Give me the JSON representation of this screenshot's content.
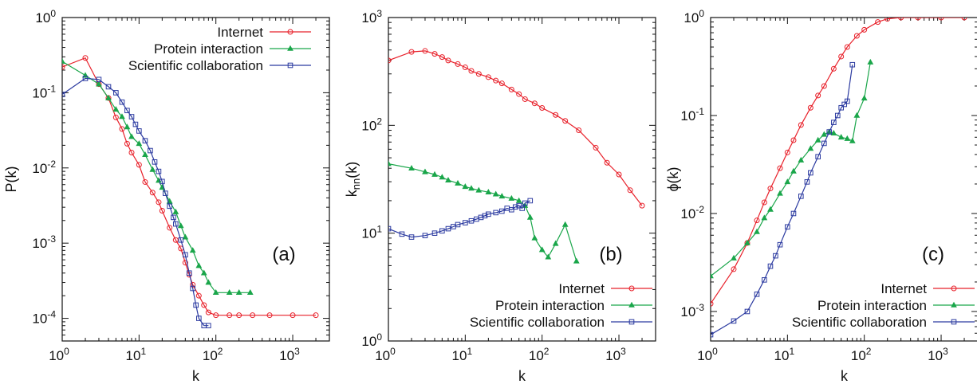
{
  "chart_data": [
    {
      "type": "line",
      "panel_label": "(a)",
      "xlabel": "k",
      "ylabel": "P(k)",
      "xscale": "log",
      "yscale": "log",
      "xlim": [
        1,
        3000
      ],
      "ylim": [
        5e-05,
        1
      ],
      "x_ticks": [
        {
          "v": 1,
          "e": "0"
        },
        {
          "v": 10,
          "e": "1"
        },
        {
          "v": 100,
          "e": "2"
        },
        {
          "v": 1000,
          "e": "3"
        }
      ],
      "y_ticks": [
        {
          "v": 0.0001,
          "e": "-4"
        },
        {
          "v": 0.001,
          "e": "-3"
        },
        {
          "v": 0.01,
          "e": "-2"
        },
        {
          "v": 0.1,
          "e": "-1"
        },
        {
          "v": 1,
          "e": "0"
        }
      ],
      "legend_position": "top-right",
      "series": [
        {
          "name": "Internet",
          "color": "#e8202a",
          "marker": "circle",
          "x": [
            1,
            2,
            3,
            4,
            5,
            6,
            7,
            8,
            10,
            12,
            15,
            18,
            20,
            25,
            30,
            35,
            40,
            45,
            50,
            60,
            70,
            80,
            100,
            150,
            200,
            300,
            500,
            1000,
            2000
          ],
          "y": [
            0.22,
            0.29,
            0.13,
            0.085,
            0.047,
            0.033,
            0.021,
            0.016,
            0.011,
            0.0065,
            0.0047,
            0.0035,
            0.0027,
            0.0016,
            0.0011,
            0.00085,
            0.00055,
            0.00038,
            0.00028,
            0.0002,
            0.00015,
            0.00012,
            0.00011,
            0.00011,
            0.00011,
            0.00011,
            0.00011,
            0.00011,
            0.00011
          ]
        },
        {
          "name": "Protein interaction",
          "color": "#1aa64a",
          "marker": "triangle",
          "x": [
            1,
            2,
            3,
            4,
            5,
            6,
            7,
            8,
            10,
            12,
            15,
            18,
            20,
            25,
            30,
            35,
            40,
            50,
            60,
            70,
            80,
            100,
            150,
            200,
            280
          ],
          "y": [
            0.26,
            0.17,
            0.13,
            0.085,
            0.06,
            0.048,
            0.035,
            0.026,
            0.021,
            0.015,
            0.0095,
            0.0068,
            0.0055,
            0.0036,
            0.0026,
            0.0017,
            0.0012,
            0.0008,
            0.0005,
            0.0004,
            0.0003,
            0.00022,
            0.00022,
            0.00022,
            0.00022
          ]
        },
        {
          "name": "Scientific collaboration",
          "color": "#2b3aa0",
          "marker": "square",
          "x": [
            1,
            2,
            3,
            4,
            5,
            6,
            7,
            8,
            9,
            10,
            12,
            14,
            16,
            18,
            20,
            22,
            25,
            28,
            30,
            35,
            40,
            45,
            50,
            55,
            60,
            70,
            80
          ],
          "y": [
            0.095,
            0.155,
            0.15,
            0.12,
            0.1,
            0.075,
            0.058,
            0.048,
            0.038,
            0.031,
            0.023,
            0.017,
            0.012,
            0.009,
            0.0066,
            0.0046,
            0.0031,
            0.0022,
            0.0018,
            0.0011,
            0.0007,
            0.0004,
            0.00025,
            0.00015,
            0.0001,
            8e-05,
            8e-05
          ]
        }
      ]
    },
    {
      "type": "line",
      "panel_label": "(b)",
      "xlabel": "k",
      "ylabel": "k_nn(k)",
      "xscale": "log",
      "yscale": "log",
      "xlim": [
        1,
        3000
      ],
      "ylim": [
        1,
        1000
      ],
      "x_ticks": [
        {
          "v": 1,
          "e": "0"
        },
        {
          "v": 10,
          "e": "1"
        },
        {
          "v": 100,
          "e": "2"
        },
        {
          "v": 1000,
          "e": "3"
        }
      ],
      "y_ticks": [
        {
          "v": 1,
          "e": "0"
        },
        {
          "v": 10,
          "e": "1"
        },
        {
          "v": 100,
          "e": "2"
        },
        {
          "v": 1000,
          "e": "3"
        }
      ],
      "legend_position": "bottom-right",
      "series": [
        {
          "name": "Internet",
          "color": "#e8202a",
          "marker": "circle",
          "x": [
            1,
            2,
            3,
            4,
            5,
            6,
            8,
            10,
            12,
            15,
            20,
            25,
            30,
            40,
            50,
            60,
            80,
            100,
            150,
            200,
            300,
            500,
            700,
            1000,
            1400,
            2000
          ],
          "y": [
            400,
            480,
            490,
            460,
            430,
            400,
            370,
            345,
            320,
            300,
            280,
            260,
            245,
            215,
            195,
            175,
            160,
            145,
            125,
            110,
            90,
            62,
            45,
            35,
            25,
            18
          ]
        },
        {
          "name": "Protein interaction",
          "color": "#1aa64a",
          "marker": "triangle",
          "x": [
            1,
            2,
            3,
            4,
            5,
            6,
            8,
            10,
            12,
            15,
            20,
            25,
            30,
            40,
            50,
            60,
            70,
            80,
            100,
            120,
            150,
            200,
            280
          ],
          "y": [
            44,
            40,
            37,
            35,
            33,
            31,
            29,
            27,
            26,
            25,
            24,
            23,
            22,
            21,
            20,
            18,
            14,
            9,
            7,
            6,
            8,
            12,
            5.5
          ]
        },
        {
          "name": "Scientific collaboration",
          "color": "#2b3aa0",
          "marker": "square",
          "x": [
            1,
            1.5,
            2,
            3,
            4,
            5,
            6,
            7,
            8,
            10,
            12,
            14,
            16,
            18,
            20,
            25,
            30,
            35,
            40,
            45,
            50,
            55,
            60,
            70
          ],
          "y": [
            11,
            9.8,
            9.2,
            9.5,
            10,
            10.5,
            11,
            11.5,
            12,
            12.5,
            13,
            13.5,
            14,
            14.5,
            15,
            15.5,
            16,
            17,
            16.5,
            17.5,
            18,
            17,
            19,
            20
          ]
        }
      ]
    },
    {
      "type": "line",
      "panel_label": "(c)",
      "xlabel": "k",
      "ylabel": "ϕ(k)",
      "xscale": "log",
      "yscale": "log",
      "xlim": [
        1,
        3000
      ],
      "ylim": [
        0.0005,
        1
      ],
      "x_ticks": [
        {
          "v": 1,
          "e": "0"
        },
        {
          "v": 10,
          "e": "1"
        },
        {
          "v": 100,
          "e": "2"
        },
        {
          "v": 1000,
          "e": "3"
        }
      ],
      "y_ticks": [
        {
          "v": 0.001,
          "e": "-3"
        },
        {
          "v": 0.01,
          "e": "-2"
        },
        {
          "v": 0.1,
          "e": "-1"
        },
        {
          "v": 1,
          "e": "0"
        }
      ],
      "legend_position": "bottom-right",
      "series": [
        {
          "name": "Internet",
          "color": "#e8202a",
          "marker": "circle",
          "x": [
            1,
            2,
            3,
            4,
            5,
            6,
            8,
            10,
            12,
            15,
            20,
            25,
            30,
            40,
            50,
            60,
            80,
            100,
            150,
            200,
            300,
            500,
            1000,
            2000
          ],
          "y": [
            0.0012,
            0.0027,
            0.005,
            0.0085,
            0.013,
            0.018,
            0.029,
            0.042,
            0.056,
            0.08,
            0.12,
            0.16,
            0.2,
            0.3,
            0.4,
            0.5,
            0.65,
            0.75,
            0.9,
            0.97,
            1.0,
            1.0,
            1.0,
            1.0
          ]
        },
        {
          "name": "Protein interaction",
          "color": "#1aa64a",
          "marker": "triangle",
          "x": [
            1,
            2,
            3,
            4,
            5,
            6,
            8,
            10,
            12,
            15,
            20,
            25,
            30,
            35,
            40,
            50,
            60,
            70,
            80,
            100,
            120
          ],
          "y": [
            0.0023,
            0.0035,
            0.005,
            0.0065,
            0.009,
            0.011,
            0.016,
            0.021,
            0.027,
            0.035,
            0.046,
            0.056,
            0.064,
            0.068,
            0.066,
            0.06,
            0.058,
            0.055,
            0.1,
            0.15,
            0.35
          ]
        },
        {
          "name": "Scientific collaboration",
          "color": "#2b3aa0",
          "marker": "square",
          "x": [
            1,
            2,
            3,
            4,
            5,
            6,
            7,
            8,
            10,
            12,
            15,
            18,
            20,
            25,
            30,
            35,
            40,
            45,
            50,
            55,
            60,
            70
          ],
          "y": [
            0.00058,
            0.0008,
            0.001,
            0.0015,
            0.0021,
            0.0029,
            0.0037,
            0.0048,
            0.0073,
            0.01,
            0.015,
            0.021,
            0.026,
            0.038,
            0.052,
            0.068,
            0.085,
            0.1,
            0.12,
            0.13,
            0.14,
            0.33
          ]
        }
      ]
    }
  ]
}
